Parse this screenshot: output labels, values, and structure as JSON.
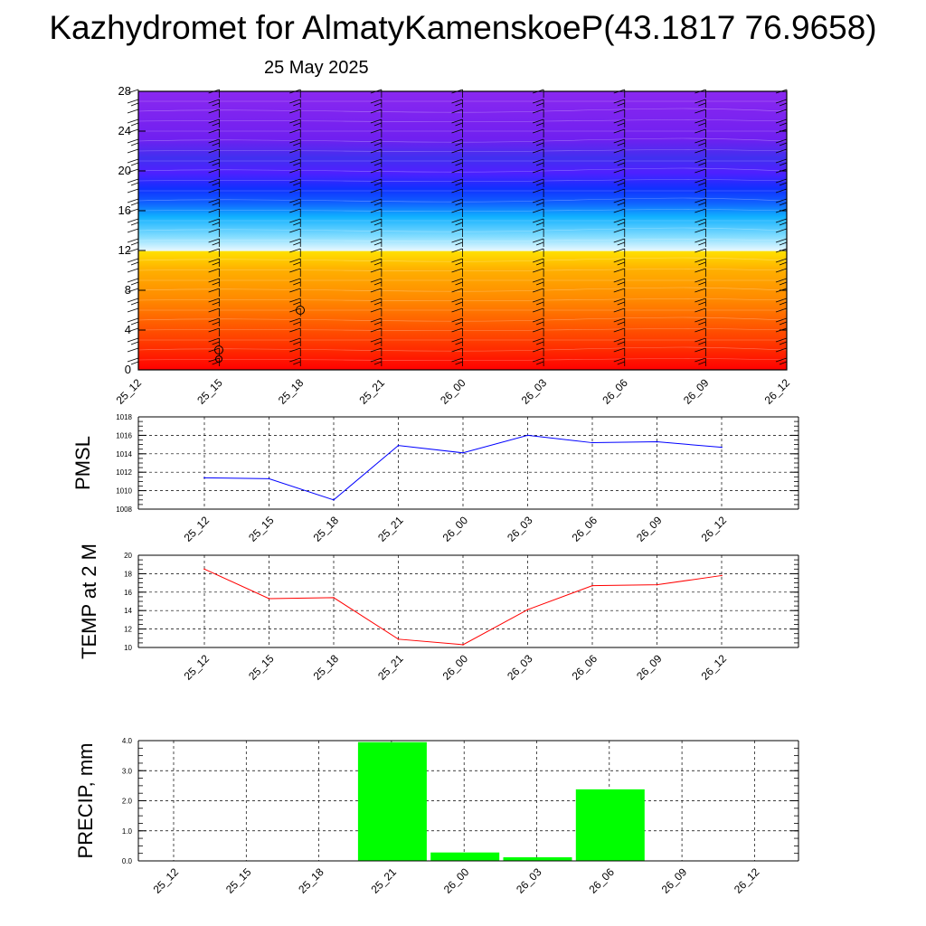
{
  "title": "Kazhydromet for AlmatyKamenskoeP(43.1817 76.9658)",
  "subtitle": "25 May 2025",
  "chart_data": [
    {
      "type": "heatmap",
      "x_ticks": [
        "25_12",
        "25_15",
        "25_18",
        "25_21",
        "26_00",
        "26_03",
        "26_06",
        "26_09",
        "26_12"
      ],
      "y_ticks": [
        "0",
        "4",
        "8",
        "12",
        "16",
        "20",
        "24",
        "28"
      ],
      "ylim": [
        0,
        28
      ],
      "colors": {
        "low": "#ff0000",
        "mid_warm": "#ffcc00",
        "mid_cold": "#00ccff",
        "high": "#8020f0"
      },
      "wind_barbs": true
    },
    {
      "type": "line",
      "ylabel": "PMSL",
      "categories": [
        "25_12",
        "25_15",
        "25_18",
        "25_21",
        "26_00",
        "26_03",
        "26_06",
        "26_09",
        "26_12"
      ],
      "values": [
        1011.4,
        1011.3,
        1009.0,
        1014.9,
        1014.1,
        1016.0,
        1015.2,
        1015.3,
        1014.7
      ],
      "ylim": [
        1008,
        1018
      ],
      "y_ticks": [
        "1008",
        "1010",
        "1012",
        "1014",
        "1016",
        "1018"
      ],
      "color": "#0000ff",
      "grid": true
    },
    {
      "type": "line",
      "ylabel": "TEMP at 2 M",
      "categories": [
        "25_12",
        "25_15",
        "25_18",
        "25_21",
        "26_00",
        "26_03",
        "26_06",
        "26_09",
        "26_12"
      ],
      "values": [
        18.5,
        15.3,
        15.4,
        10.9,
        10.3,
        14.1,
        16.7,
        16.8,
        17.8
      ],
      "ylim": [
        10,
        20
      ],
      "y_ticks": [
        "10",
        "12",
        "14",
        "16",
        "18",
        "20"
      ],
      "color": "#ff0000",
      "grid": true
    },
    {
      "type": "bar",
      "ylabel": "PRECIP, mm",
      "categories": [
        "25_12",
        "25_15",
        "25_18",
        "25_21",
        "26_00",
        "26_03",
        "26_06",
        "26_09",
        "26_12"
      ],
      "values": [
        0,
        0,
        0,
        3.95,
        0.28,
        0.12,
        2.38,
        0,
        0
      ],
      "ylim": [
        0,
        4
      ],
      "y_ticks": [
        "0.0",
        "1.0",
        "2.0",
        "3.0",
        "4.0"
      ],
      "color": "#00ff00",
      "grid": true
    }
  ]
}
